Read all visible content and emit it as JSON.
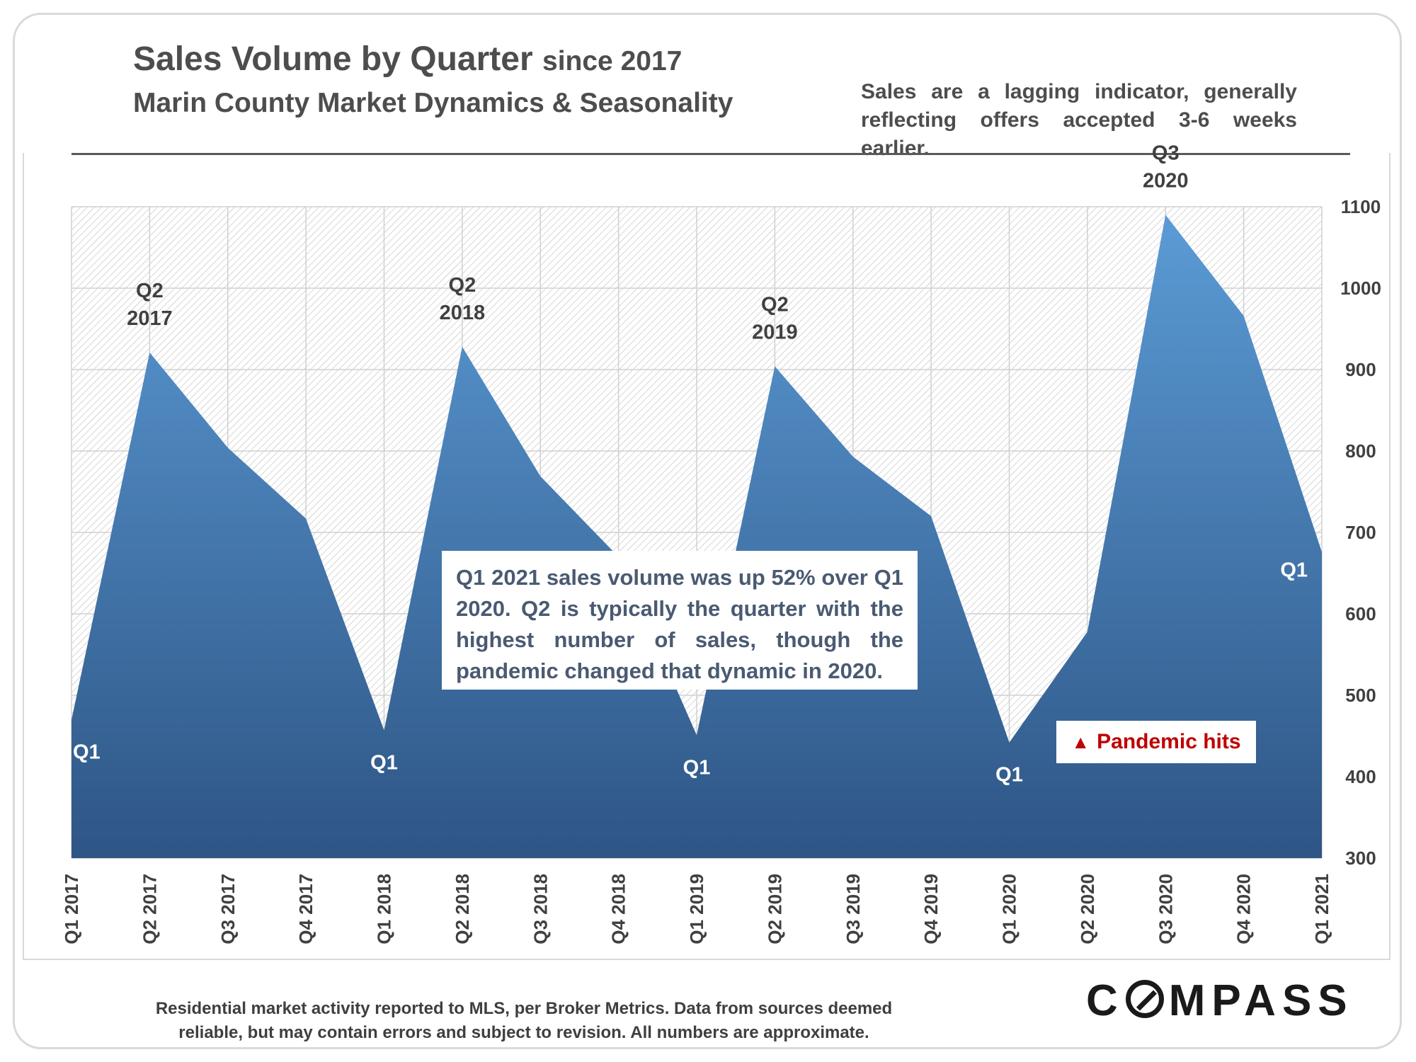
{
  "header": {
    "title": "Sales Volume by Quarter",
    "title_suffix": "since 2017",
    "subtitle": "Marin County Market Dynamics & Seasonality",
    "note": "Sales are a lagging indicator, generally reflecting offers accepted 3-6 weeks earlier."
  },
  "callout": {
    "text": "Q1 2021 sales volume was up 52% over Q1 2020. Q2 is typically the quarter with the highest number of sales, though the pandemic changed that dynamic in 2020."
  },
  "pandemic_marker": {
    "symbol": "▲",
    "label": "Pandemic hits",
    "color": "#c00000"
  },
  "footer": {
    "line1": "Residential market activity reported to MLS, per Broker Metrics. Data from sources deemed",
    "line2": "reliable, but may contain errors and subject to revision. All numbers are approximate."
  },
  "logo": {
    "prefix": "C",
    "suffix": "MPASS",
    "icon": "compass-o-icon"
  },
  "chart_data": {
    "type": "area",
    "title": "",
    "xlabel": "",
    "ylabel": "",
    "categories": [
      "Q1 2017",
      "Q2 2017",
      "Q3 2017",
      "Q4 2017",
      "Q1 2018",
      "Q2 2018",
      "Q3 2018",
      "Q4 2018",
      "Q1 2019",
      "Q2 2019",
      "Q3 2019",
      "Q4 2019",
      "Q1 2020",
      "Q2 2020",
      "Q3 2020",
      "Q4 2020",
      "Q1 2021"
    ],
    "values": [
      470,
      921,
      804,
      717,
      457,
      928,
      769,
      670,
      451,
      904,
      793,
      720,
      442,
      578,
      1090,
      966,
      676
    ],
    "ylim": [
      300,
      1100
    ],
    "yticks": [
      300,
      400,
      500,
      600,
      700,
      800,
      900,
      1000,
      1100
    ],
    "y_axis_position": "right",
    "grid": true,
    "fill_top_color": "#5b9bd5",
    "fill_bottom_color": "#2e5585",
    "annotations": [
      {
        "index": 0,
        "lines": [
          "Q1"
        ],
        "style": "inside"
      },
      {
        "index": 1,
        "lines": [
          "Q2",
          "2017"
        ],
        "style": "above"
      },
      {
        "index": 4,
        "lines": [
          "Q1"
        ],
        "style": "inside"
      },
      {
        "index": 5,
        "lines": [
          "Q2",
          "2018"
        ],
        "style": "above"
      },
      {
        "index": 8,
        "lines": [
          "Q1"
        ],
        "style": "inside"
      },
      {
        "index": 9,
        "lines": [
          "Q2",
          "2019"
        ],
        "style": "above"
      },
      {
        "index": 12,
        "lines": [
          "Q1"
        ],
        "style": "inside"
      },
      {
        "index": 14,
        "lines": [
          "Q3",
          "2020"
        ],
        "style": "above"
      },
      {
        "index": 16,
        "lines": [
          "Q1"
        ],
        "style": "inside"
      }
    ]
  }
}
